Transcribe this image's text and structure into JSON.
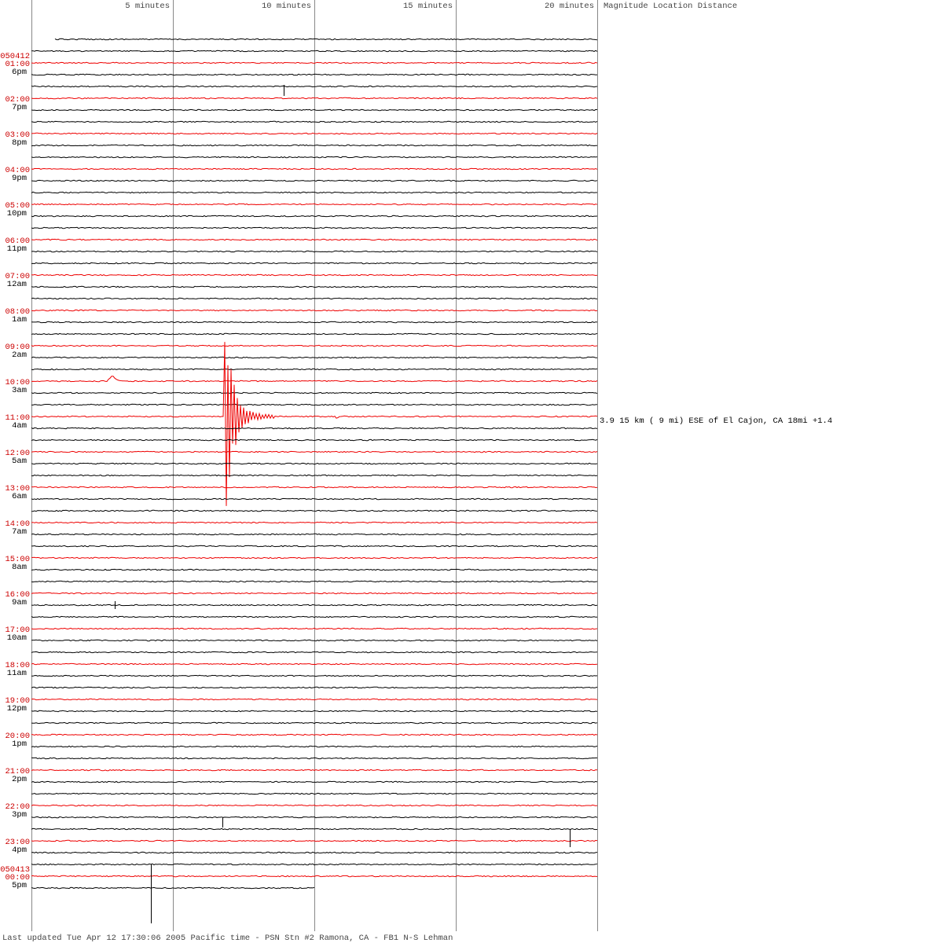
{
  "header": {
    "columns": [
      "5 minutes",
      "10 minutes",
      "15 minutes",
      "20 minutes"
    ],
    "legend": "Magnitude Location Distance"
  },
  "dates": [
    "050412",
    "050413"
  ],
  "rows": [
    {
      "utc": "01:00",
      "local": "6pm"
    },
    {
      "utc": "02:00",
      "local": "7pm"
    },
    {
      "utc": "03:00",
      "local": "8pm"
    },
    {
      "utc": "04:00",
      "local": "9pm"
    },
    {
      "utc": "05:00",
      "local": "10pm"
    },
    {
      "utc": "06:00",
      "local": "11pm"
    },
    {
      "utc": "07:00",
      "local": "12am"
    },
    {
      "utc": "08:00",
      "local": "1am"
    },
    {
      "utc": "09:00",
      "local": "2am"
    },
    {
      "utc": "10:00",
      "local": "3am"
    },
    {
      "utc": "11:00",
      "local": "4am"
    },
    {
      "utc": "12:00",
      "local": "5am"
    },
    {
      "utc": "13:00",
      "local": "6am"
    },
    {
      "utc": "14:00",
      "local": "7am"
    },
    {
      "utc": "15:00",
      "local": "8am"
    },
    {
      "utc": "16:00",
      "local": "9am"
    },
    {
      "utc": "17:00",
      "local": "10am"
    },
    {
      "utc": "18:00",
      "local": "11am"
    },
    {
      "utc": "19:00",
      "local": "12pm"
    },
    {
      "utc": "20:00",
      "local": "1pm"
    },
    {
      "utc": "21:00",
      "local": "2pm"
    },
    {
      "utc": "22:00",
      "local": "3pm"
    },
    {
      "utc": "23:00",
      "local": "4pm"
    },
    {
      "utc": "00:00",
      "local": "5pm"
    }
  ],
  "event": "3.9 15 km ( 9 mi) ESE of El Cajon, CA 18mi +1.4",
  "footer": "Last updated Tue Apr 12 17:30:06 2005 Pacific time - PSN Stn #2 Ramona, CA - FB1 N-S Lehman"
}
